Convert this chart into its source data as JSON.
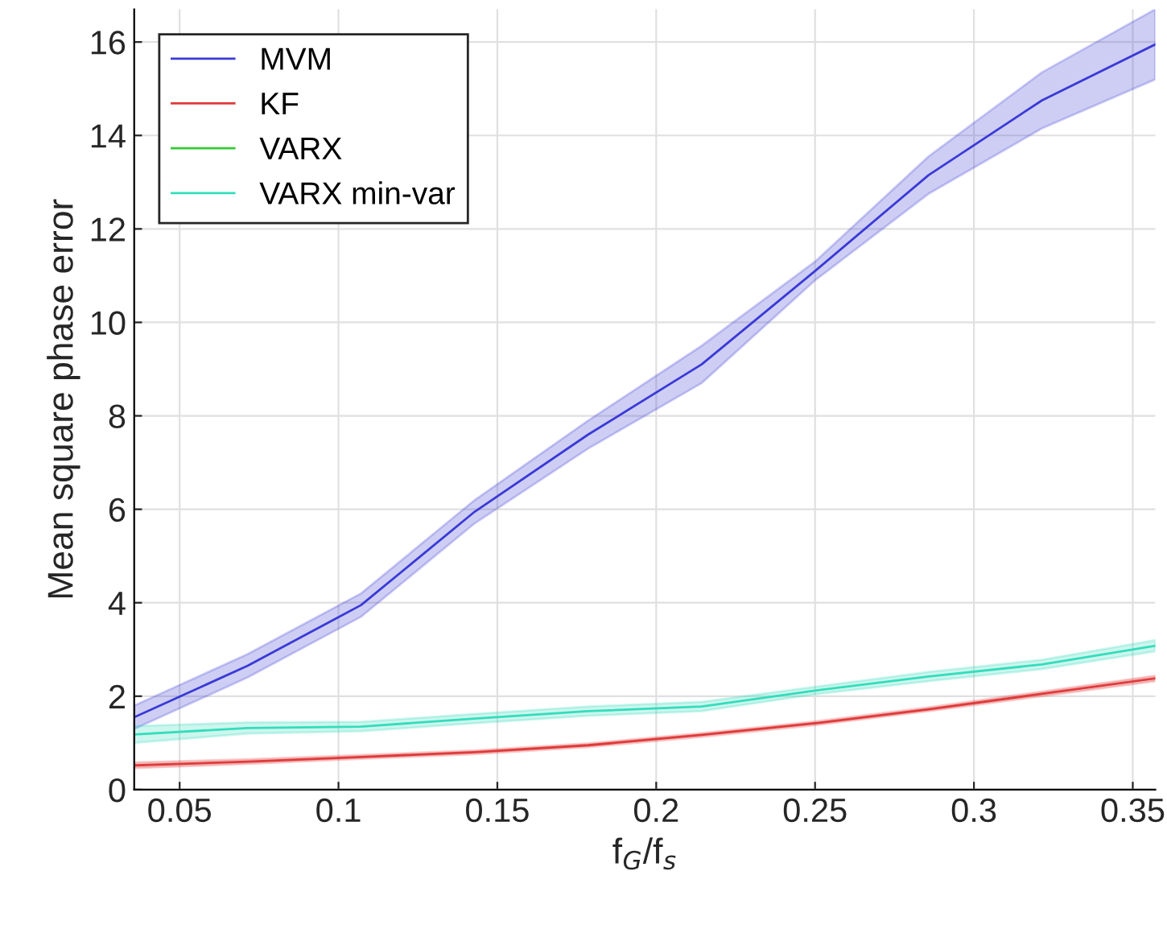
{
  "chart_data": {
    "type": "line",
    "xlabel": "f$_{G}$/f$_{s}$",
    "ylabel": "Mean square phase error",
    "x": [
      0.0357,
      0.0714,
      0.1071,
      0.1429,
      0.1786,
      0.2143,
      0.25,
      0.2857,
      0.3214,
      0.3571
    ],
    "series": [
      {
        "name": "MVM",
        "color": "#3a3ad6",
        "values": [
          1.55,
          2.65,
          3.95,
          5.95,
          7.6,
          9.1,
          11.1,
          13.15,
          14.75,
          15.95
        ],
        "lower": [
          1.3,
          2.4,
          3.7,
          5.7,
          7.3,
          8.7,
          10.9,
          12.75,
          14.15,
          15.2
        ],
        "upper": [
          1.8,
          2.9,
          4.2,
          6.2,
          7.9,
          9.5,
          11.3,
          13.55,
          15.35,
          16.7
        ]
      },
      {
        "name": "KF",
        "color": "#e03a3a",
        "values": [
          0.52,
          0.6,
          0.7,
          0.8,
          0.95,
          1.17,
          1.42,
          1.72,
          2.05,
          2.38
        ],
        "lower": [
          0.46,
          0.55,
          0.66,
          0.76,
          0.91,
          1.13,
          1.38,
          1.68,
          2.0,
          2.32
        ],
        "upper": [
          0.58,
          0.65,
          0.74,
          0.84,
          0.99,
          1.21,
          1.46,
          1.76,
          2.1,
          2.44
        ]
      },
      {
        "name": "VARX",
        "color": "#33cc33",
        "values": [
          null,
          null,
          null,
          null,
          null,
          null,
          null,
          null,
          null,
          null
        ]
      },
      {
        "name": "VARX min-var",
        "color": "#33ddbb",
        "values": [
          1.18,
          1.32,
          1.35,
          1.52,
          1.68,
          1.78,
          2.12,
          2.42,
          2.68,
          3.08
        ],
        "lower": [
          1.0,
          1.2,
          1.25,
          1.42,
          1.58,
          1.68,
          2.04,
          2.32,
          2.58,
          2.96
        ],
        "upper": [
          1.36,
          1.44,
          1.45,
          1.62,
          1.78,
          1.88,
          2.2,
          2.52,
          2.78,
          3.2
        ]
      }
    ],
    "xlim": [
      0.0357,
      0.3571
    ],
    "ylim": [
      0,
      16.7
    ],
    "xticks": [
      0.05,
      0.1,
      0.15,
      0.2,
      0.25,
      0.3,
      0.35
    ],
    "yticks": [
      0,
      2,
      4,
      6,
      8,
      10,
      12,
      14,
      16
    ],
    "grid": true,
    "legend": "top left"
  }
}
